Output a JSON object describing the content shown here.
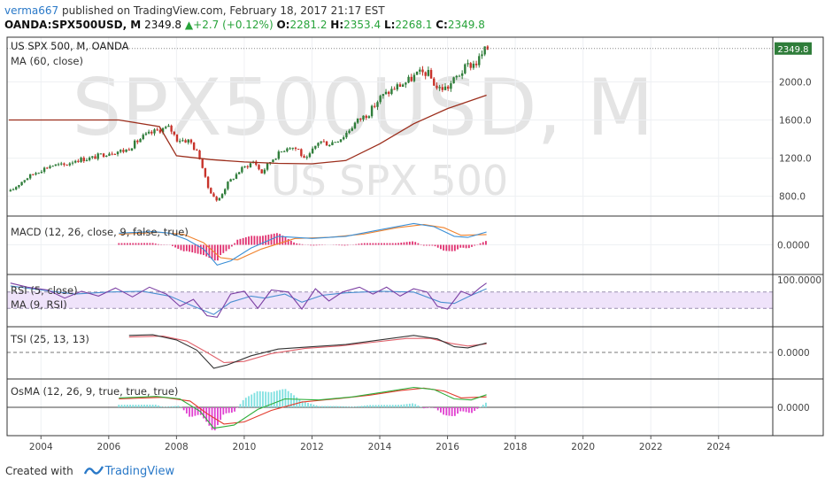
{
  "header": {
    "author": "verma667",
    "published": " published on TradingView.com, February 18, 2017 21:17 EST",
    "symbol": "OANDA:SPX500USD, M",
    "last": "2349.8",
    "change": "+2.7 (+0.12%)",
    "o_label": "O:",
    "o_value": "2281.2",
    "h_label": "H:",
    "h_value": "2353.4",
    "l_label": "L:",
    "l_value": "2268.1",
    "c_label": "C:",
    "c_value": "2349.8"
  },
  "watermark": {
    "line1": "SPX500USD, M",
    "line2": "US SPX 500"
  },
  "footer": {
    "created_with": "Created with",
    "brand": "TradingView"
  },
  "colors": {
    "up_candle": "#2f7d3a",
    "down_candle": "#c8332b",
    "ma": "#9c2e1c",
    "macd": "#3a8fd6",
    "signal": "#f0822c",
    "hist": "#e0306f",
    "rsi": "#7b3fa3",
    "rsi_ma": "#4a8fd0",
    "rsi_band": "#efe3fa",
    "tsi": "#333333",
    "tsi_signal": "#e0606a",
    "osma_line1": "#2eae3a",
    "osma_line2": "#e23a2c",
    "osma_pos": "#7fe0e0",
    "osma_neg": "#e040d0"
  },
  "chart_data": [
    {
      "type": "candlestick",
      "title": "US SPX 500, M, OANDA",
      "ylim": [
        620,
        2450
      ],
      "xlim": [
        2003.0,
        2025.6
      ],
      "x_ticks": [
        "2004",
        "2006",
        "2008",
        "2010",
        "2012",
        "2014",
        "2016",
        "2018",
        "2020",
        "2022",
        "2024"
      ],
      "y_ticks": [
        "800.0",
        "1200.0",
        "1600.0",
        "2000.0"
      ],
      "last_label": "2349.8",
      "price_path": [
        [
          2003.1,
          850
        ],
        [
          2003.5,
          975
        ],
        [
          2003.9,
          1060
        ],
        [
          2004.3,
          1125
        ],
        [
          2004.7,
          1125
        ],
        [
          2005.0,
          1180
        ],
        [
          2005.5,
          1200
        ],
        [
          2006.0,
          1260
        ],
        [
          2006.5,
          1280
        ],
        [
          2007.0,
          1420
        ],
        [
          2007.5,
          1500
        ],
        [
          2007.8,
          1520
        ],
        [
          2008.0,
          1400
        ],
        [
          2008.4,
          1380
        ],
        [
          2008.7,
          1200
        ],
        [
          2008.9,
          910
        ],
        [
          2009.1,
          800
        ],
        [
          2009.2,
          740
        ],
        [
          2009.5,
          930
        ],
        [
          2009.9,
          1080
        ],
        [
          2010.3,
          1170
        ],
        [
          2010.5,
          1040
        ],
        [
          2010.8,
          1180
        ],
        [
          2011.3,
          1330
        ],
        [
          2011.6,
          1290
        ],
        [
          2011.8,
          1160
        ],
        [
          2012.2,
          1380
        ],
        [
          2012.5,
          1350
        ],
        [
          2012.9,
          1420
        ],
        [
          2013.3,
          1580
        ],
        [
          2013.7,
          1680
        ],
        [
          2014.0,
          1830
        ],
        [
          2014.5,
          1950
        ],
        [
          2014.8,
          2000
        ],
        [
          2015.1,
          2080
        ],
        [
          2015.4,
          2100
        ],
        [
          2015.7,
          1930
        ],
        [
          2016.0,
          1940
        ],
        [
          2016.3,
          2065
        ],
        [
          2016.6,
          2170
        ],
        [
          2016.85,
          2200
        ],
        [
          2017.05,
          2300
        ],
        [
          2017.15,
          2349.8
        ]
      ],
      "series": [
        {
          "name": "MA (60, close)",
          "values": [
            [
              2003.05,
              1600
            ],
            [
              2006.3,
              1600
            ],
            [
              2007.5,
              1530
            ],
            [
              2008.0,
              1225
            ],
            [
              2009.0,
              1185
            ],
            [
              2010.0,
              1160
            ],
            [
              2011.0,
              1145
            ],
            [
              2012.0,
              1140
            ],
            [
              2013.0,
              1175
            ],
            [
              2014.0,
              1350
            ],
            [
              2015.0,
              1560
            ],
            [
              2016.0,
              1720
            ],
            [
              2017.15,
              1860
            ]
          ]
        }
      ]
    },
    {
      "type": "line",
      "title": "MACD (12, 26, close, 9, false, true)",
      "y_ticks": [
        "0.0000"
      ],
      "ylim": [
        -110,
        110
      ],
      "series": [
        {
          "values": [
            [
              2006.3,
              55
            ],
            [
              2007.3,
              62
            ],
            [
              2007.8,
              55
            ],
            [
              2008.3,
              25
            ],
            [
              2008.8,
              -20
            ],
            [
              2009.2,
              -95
            ],
            [
              2009.6,
              -75
            ],
            [
              2010.2,
              -15
            ],
            [
              2011.0,
              40
            ],
            [
              2012.0,
              30
            ],
            [
              2013.0,
              40
            ],
            [
              2014.0,
              70
            ],
            [
              2015.0,
              100
            ],
            [
              2015.6,
              85
            ],
            [
              2016.2,
              40
            ],
            [
              2016.6,
              35
            ],
            [
              2017.15,
              60
            ]
          ]
        },
        {
          "values": [
            [
              2006.3,
              50
            ],
            [
              2007.5,
              58
            ],
            [
              2008.2,
              50
            ],
            [
              2008.8,
              10
            ],
            [
              2009.3,
              -60
            ],
            [
              2009.8,
              -70
            ],
            [
              2010.5,
              -20
            ],
            [
              2011.5,
              30
            ],
            [
              2012.5,
              35
            ],
            [
              2013.5,
              50
            ],
            [
              2014.5,
              80
            ],
            [
              2015.3,
              95
            ],
            [
              2015.9,
              80
            ],
            [
              2016.4,
              45
            ],
            [
              2017.15,
              48
            ]
          ]
        }
      ]
    },
    {
      "type": "line",
      "title": "RSI (5, close)",
      "subtitle": "MA (9, RSI)",
      "y_ticks": [
        "100.0000"
      ],
      "ylim": [
        0,
        100
      ],
      "band": [
        30,
        70
      ],
      "series": [
        {
          "values": [
            [
              2003.1,
              92
            ],
            [
              2003.6,
              82
            ],
            [
              2004.2,
              75
            ],
            [
              2004.7,
              55
            ],
            [
              2005.2,
              72
            ],
            [
              2005.7,
              60
            ],
            [
              2006.2,
              80
            ],
            [
              2006.7,
              58
            ],
            [
              2007.2,
              82
            ],
            [
              2007.7,
              65
            ],
            [
              2008.1,
              35
            ],
            [
              2008.5,
              52
            ],
            [
              2008.9,
              12
            ],
            [
              2009.2,
              8
            ],
            [
              2009.6,
              65
            ],
            [
              2010.0,
              72
            ],
            [
              2010.4,
              30
            ],
            [
              2010.8,
              75
            ],
            [
              2011.3,
              70
            ],
            [
              2011.7,
              28
            ],
            [
              2012.1,
              78
            ],
            [
              2012.5,
              48
            ],
            [
              2012.9,
              70
            ],
            [
              2013.4,
              82
            ],
            [
              2013.8,
              65
            ],
            [
              2014.2,
              82
            ],
            [
              2014.6,
              60
            ],
            [
              2015.0,
              78
            ],
            [
              2015.4,
              70
            ],
            [
              2015.7,
              35
            ],
            [
              2016.0,
              28
            ],
            [
              2016.4,
              72
            ],
            [
              2016.7,
              62
            ],
            [
              2016.95,
              80
            ],
            [
              2017.15,
              92
            ]
          ]
        },
        {
          "values": [
            [
              2003.1,
              85
            ],
            [
              2004.0,
              75
            ],
            [
              2005.0,
              65
            ],
            [
              2006.0,
              70
            ],
            [
              2007.0,
              72
            ],
            [
              2007.8,
              60
            ],
            [
              2008.5,
              35
            ],
            [
              2009.1,
              15
            ],
            [
              2009.6,
              45
            ],
            [
              2010.2,
              60
            ],
            [
              2010.6,
              55
            ],
            [
              2011.2,
              65
            ],
            [
              2011.7,
              45
            ],
            [
              2012.3,
              62
            ],
            [
              2013.0,
              68
            ],
            [
              2014.0,
              72
            ],
            [
              2015.0,
              70
            ],
            [
              2015.8,
              45
            ],
            [
              2016.2,
              42
            ],
            [
              2016.7,
              62
            ],
            [
              2017.15,
              78
            ]
          ]
        }
      ]
    },
    {
      "type": "line",
      "title": "TSI (25, 13, 13)",
      "y_ticks": [
        "0.0000"
      ],
      "ylim": [
        -90,
        90
      ],
      "series": [
        {
          "values": [
            [
              2006.6,
              75
            ],
            [
              2007.3,
              78
            ],
            [
              2008.0,
              55
            ],
            [
              2008.6,
              10
            ],
            [
              2009.1,
              -70
            ],
            [
              2009.5,
              -55
            ],
            [
              2010.2,
              -15
            ],
            [
              2011.0,
              15
            ],
            [
              2012.0,
              25
            ],
            [
              2013.0,
              35
            ],
            [
              2014.0,
              55
            ],
            [
              2015.0,
              75
            ],
            [
              2015.7,
              60
            ],
            [
              2016.2,
              25
            ],
            [
              2016.6,
              20
            ],
            [
              2017.15,
              42
            ]
          ]
        },
        {
          "values": [
            [
              2006.6,
              68
            ],
            [
              2007.6,
              72
            ],
            [
              2008.3,
              50
            ],
            [
              2008.9,
              0
            ],
            [
              2009.4,
              -45
            ],
            [
              2010.0,
              -40
            ],
            [
              2010.8,
              -5
            ],
            [
              2011.8,
              18
            ],
            [
              2012.8,
              28
            ],
            [
              2013.8,
              45
            ],
            [
              2014.8,
              62
            ],
            [
              2015.5,
              62
            ],
            [
              2016.1,
              40
            ],
            [
              2016.6,
              28
            ],
            [
              2017.15,
              38
            ]
          ]
        }
      ]
    },
    {
      "type": "bar",
      "title": "OsMA (12, 26, 9, true, true, true)",
      "y_ticks": [
        "0.0000"
      ],
      "ylim": [
        -110,
        110
      ],
      "series": [
        {
          "values": [
            [
              2006.3,
              45
            ],
            [
              2007.4,
              52
            ],
            [
              2008.1,
              40
            ],
            [
              2008.7,
              -20
            ],
            [
              2009.1,
              -100
            ],
            [
              2009.7,
              -85
            ],
            [
              2010.4,
              -10
            ],
            [
              2011.2,
              40
            ],
            [
              2012.2,
              35
            ],
            [
              2013.2,
              50
            ],
            [
              2014.2,
              75
            ],
            [
              2015.0,
              95
            ],
            [
              2015.6,
              85
            ],
            [
              2016.2,
              40
            ],
            [
              2016.7,
              35
            ],
            [
              2017.15,
              60
            ]
          ]
        },
        {
          "values": [
            [
              2006.3,
              40
            ],
            [
              2007.6,
              48
            ],
            [
              2008.4,
              30
            ],
            [
              2008.9,
              -30
            ],
            [
              2009.4,
              -80
            ],
            [
              2010.0,
              -70
            ],
            [
              2010.8,
              -15
            ],
            [
              2011.7,
              25
            ],
            [
              2012.7,
              40
            ],
            [
              2013.7,
              58
            ],
            [
              2014.6,
              80
            ],
            [
              2015.3,
              92
            ],
            [
              2015.9,
              78
            ],
            [
              2016.4,
              45
            ],
            [
              2017.15,
              50
            ]
          ]
        }
      ]
    }
  ]
}
